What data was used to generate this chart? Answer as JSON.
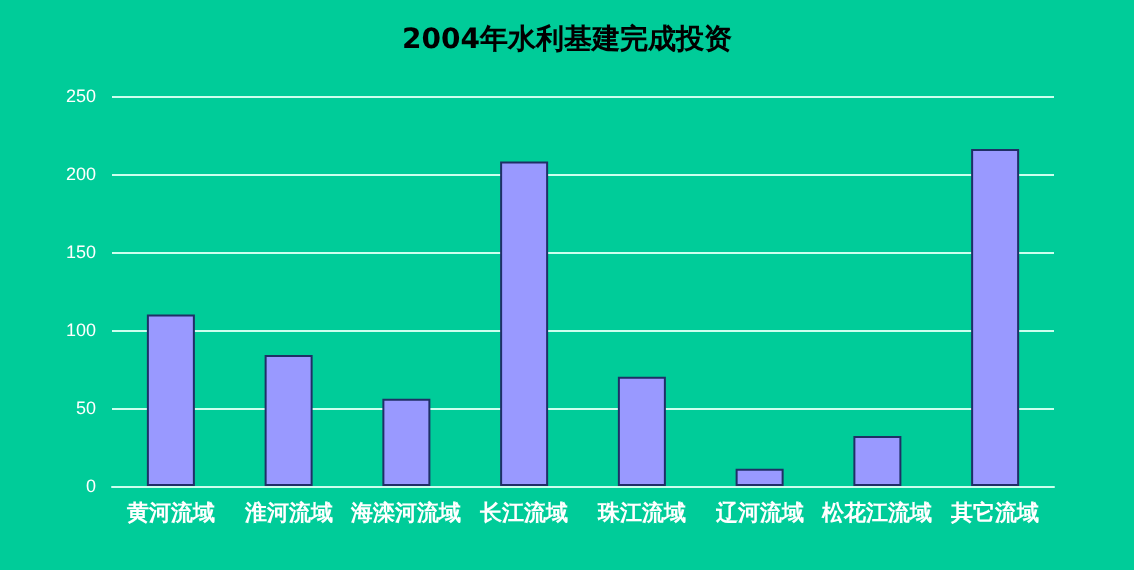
{
  "chart_data": {
    "type": "bar",
    "title": "2004年水利基建完成投资",
    "categories": [
      "黄河流域",
      "淮河流域",
      "海滦河流域",
      "长江流域",
      "珠江流域",
      "辽河流域",
      "松花江流域",
      "其它流域"
    ],
    "values": [
      110,
      84,
      56,
      208,
      70,
      11,
      32,
      216
    ],
    "color": "#9999ff",
    "ylim": [
      0,
      250
    ],
    "yticks": [
      0,
      50,
      100,
      150,
      200,
      250
    ],
    "grid": "y"
  }
}
